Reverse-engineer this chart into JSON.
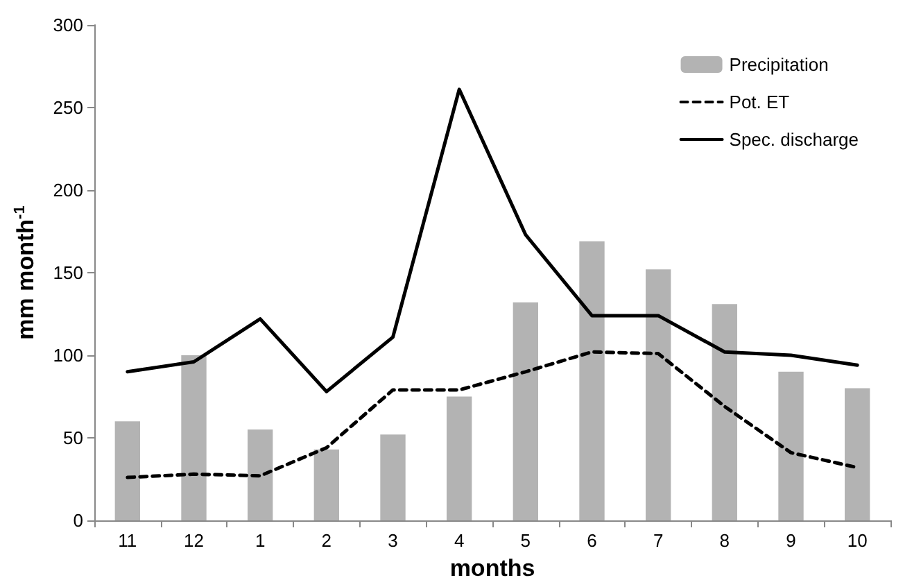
{
  "chart_data": {
    "type": "bar",
    "xlabel": "months",
    "ylabel": "mm month$^{-1}$",
    "categories": [
      "11",
      "12",
      "1",
      "2",
      "3",
      "4",
      "5",
      "6",
      "7",
      "8",
      "9",
      "10"
    ],
    "series": [
      {
        "name": "Precipitation",
        "color": "#b3b3b3",
        "values": [
          60,
          100,
          55,
          43,
          52,
          75,
          132,
          169,
          152,
          131,
          90,
          80
        ]
      },
      {
        "name": "Pot. ET",
        "type": "line",
        "color": "#000000",
        "line_style": "dashed",
        "values": [
          26,
          28,
          27,
          44,
          79,
          79,
          90,
          102,
          101,
          69,
          41,
          32
        ]
      },
      {
        "name": "Spec. discharge",
        "type": "line",
        "color": "#000000",
        "line_style": "solid",
        "values": [
          90,
          96,
          122,
          78,
          111,
          261,
          173,
          124,
          124,
          102,
          100,
          94
        ]
      }
    ],
    "ylim": [
      0,
      300
    ],
    "yticks": [
      0,
      50,
      100,
      150,
      200,
      250,
      300
    ],
    "grid": false,
    "legend": "top right",
    "marker": "none"
  }
}
